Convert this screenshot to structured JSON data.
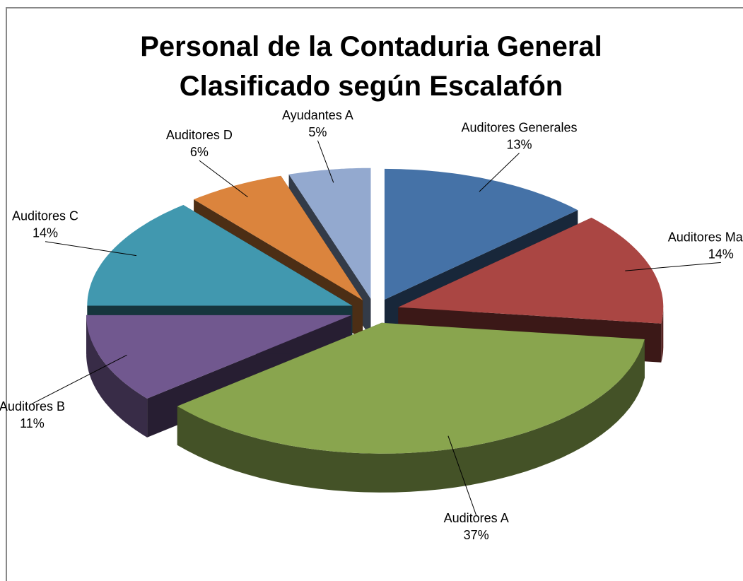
{
  "chart_data": {
    "type": "pie",
    "title": "Personal de la Contaduria General Clasificado según Escalafón",
    "categories": [
      "Auditores Generales",
      "Auditores Mayores",
      "Auditores A",
      "Auditores B",
      "Auditores C",
      "Auditores D",
      "Ayudantes A"
    ],
    "values": [
      13,
      14,
      37,
      11,
      14,
      6,
      5
    ],
    "value_labels": [
      "13%",
      "14%",
      "37%",
      "11%",
      "14%",
      "6%",
      "5%"
    ],
    "colors": [
      "#4572a7",
      "#aa4643",
      "#89a54e",
      "#71588f",
      "#4198af",
      "#db843d",
      "#93a9cf"
    ]
  }
}
